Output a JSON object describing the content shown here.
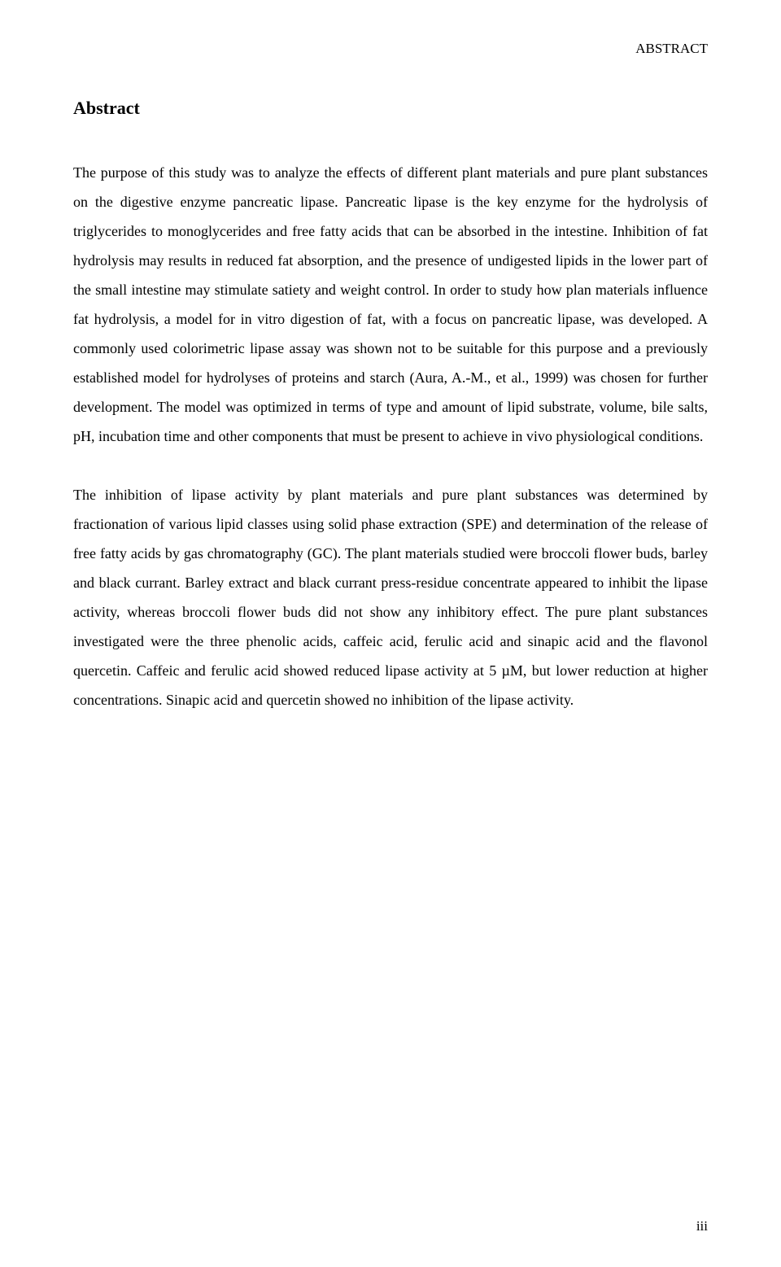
{
  "page": {
    "running_header": "ABSTRACT",
    "title": "Abstract",
    "paragraphs": [
      "The purpose of this study was to analyze the effects of different plant materials and pure plant substances on the digestive enzyme pancreatic lipase. Pancreatic lipase is the key enzyme for the hydrolysis of triglycerides to monoglycerides and free fatty acids that can be absorbed in the intestine. Inhibition of fat hydrolysis may results in reduced fat absorption, and the presence of undigested lipids in the lower part of the small intestine may stimulate satiety and weight control. In order to study how plan materials influence fat hydrolysis, a model for in vitro digestion of fat, with a focus on pancreatic lipase, was developed. A commonly used colorimetric lipase assay was shown not to be suitable for this purpose and a previously established model for hydrolyses of proteins and starch (Aura, A.-M., et al., 1999) was chosen for further development. The model was optimized in terms of type and amount of lipid substrate, volume, bile salts, pH, incubation time and other components that must be present to achieve in vivo physiological conditions.",
      "The inhibition of lipase activity by plant materials and pure plant substances was determined by fractionation of various lipid classes using solid phase extraction (SPE) and determination of the release of free fatty acids by gas chromatography (GC). The plant materials studied were broccoli flower buds, barley and black currant. Barley extract and black currant press-residue concentrate appeared to inhibit the lipase activity, whereas broccoli flower buds did not show any inhibitory effect. The pure plant substances investigated were the three phenolic acids, caffeic acid, ferulic acid and sinapic acid and the flavonol quercetin. Caffeic and ferulic acid showed reduced lipase activity at 5 µM, but lower reduction at higher concentrations. Sinapic acid and quercetin showed no inhibition of the lipase activity."
    ],
    "page_number": "iii"
  },
  "style": {
    "background_color": "#ffffff",
    "text_color": "#000000",
    "font_family": "Times New Roman",
    "body_fontsize": 18,
    "title_fontsize": 22,
    "header_fontsize": 17,
    "line_height": 2.0
  }
}
